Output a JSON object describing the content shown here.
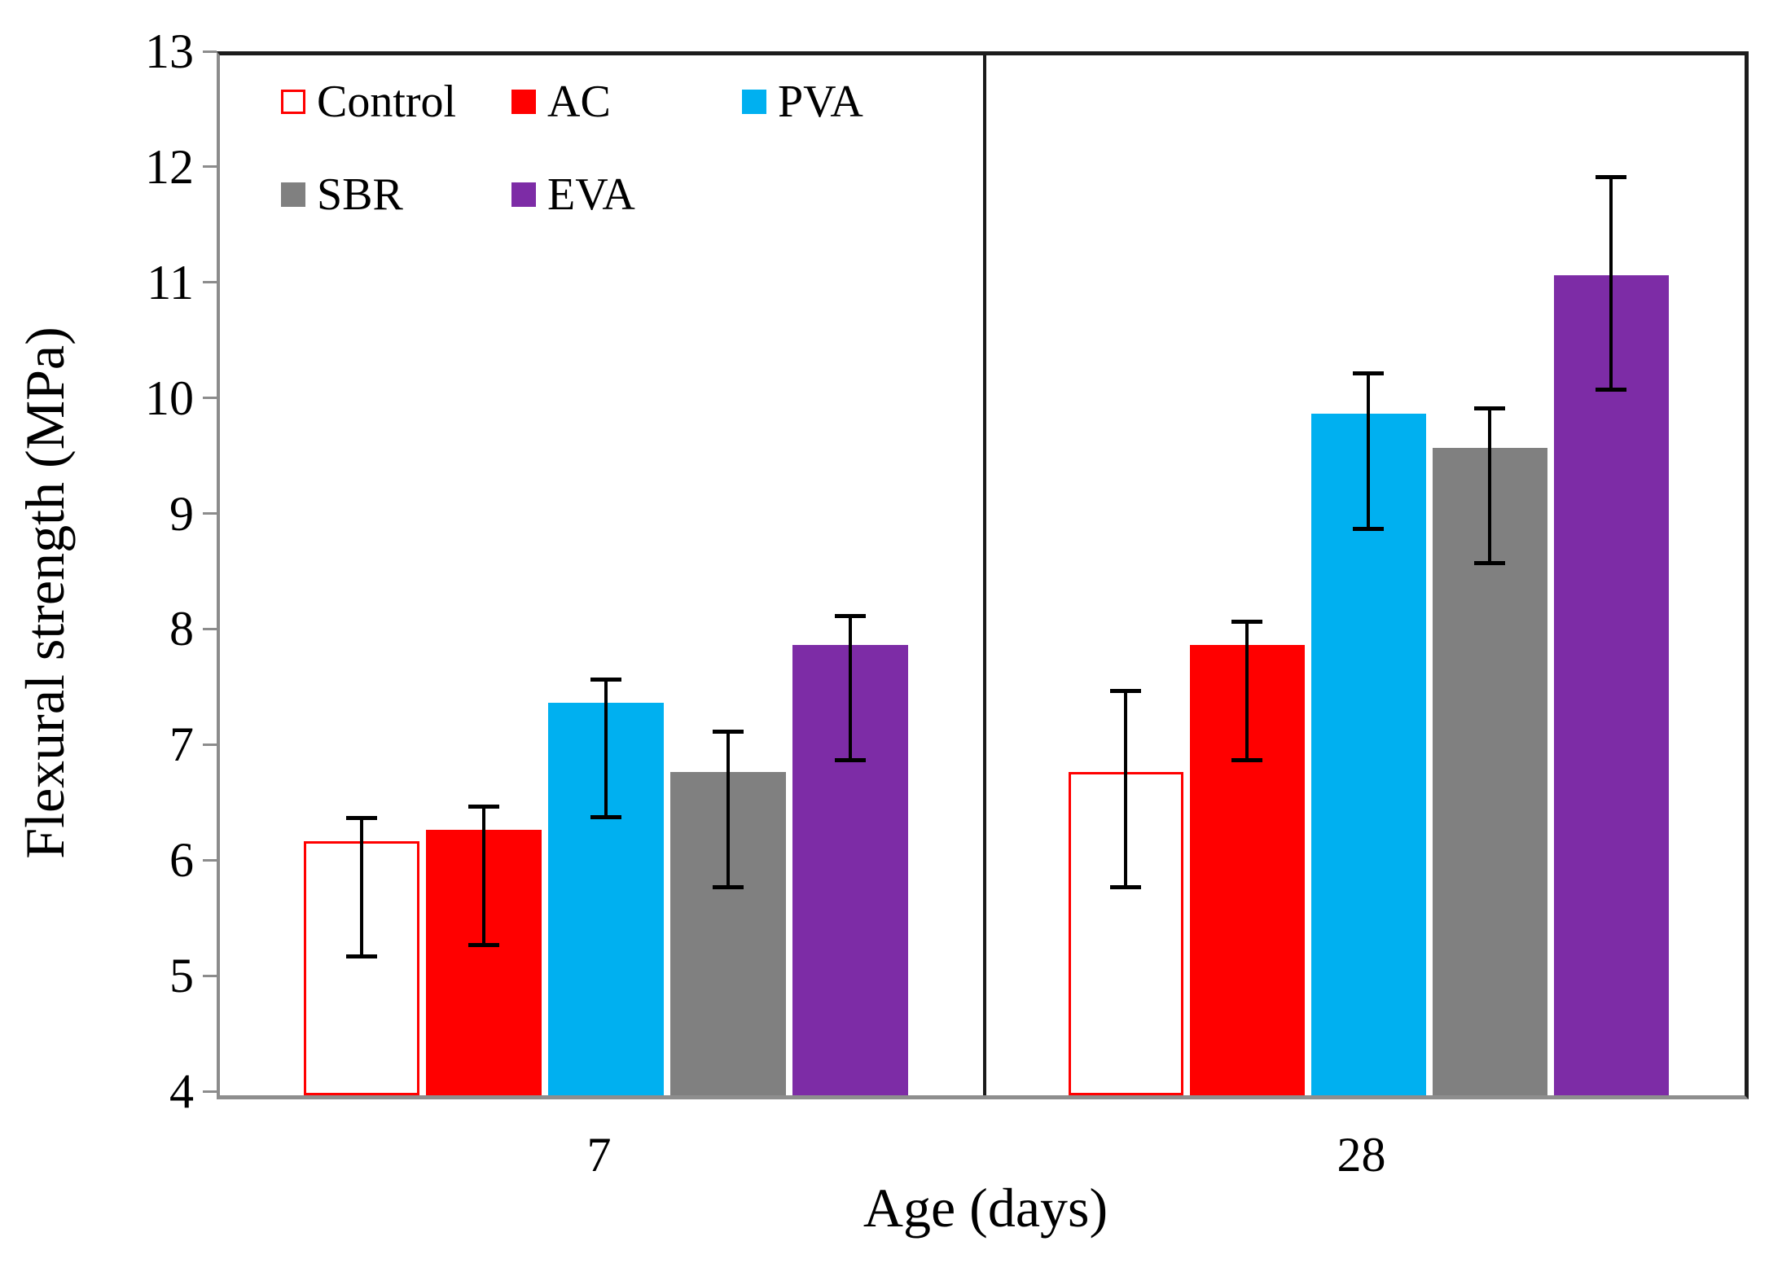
{
  "chart_data": {
    "type": "bar",
    "title": "",
    "xlabel": "Age (days)",
    "ylabel": "Flexural strength (MPa)",
    "ylim": [
      4,
      13
    ],
    "yticks": [
      4,
      5,
      6,
      7,
      8,
      9,
      10,
      11,
      12,
      13
    ],
    "categories": [
      "7",
      "28"
    ],
    "grid": false,
    "legend_position": "top-left-inside",
    "legend_rows": [
      [
        "Control",
        "AC",
        "PVA"
      ],
      [
        "SBR",
        "EVA"
      ]
    ],
    "series": [
      {
        "name": "Control",
        "color": "#FF0000",
        "fill": "hollow",
        "values": [
          6.2,
          6.8
        ],
        "err_low": [
          5.2,
          5.8
        ],
        "err_high": [
          6.4,
          7.5
        ]
      },
      {
        "name": "AC",
        "color": "#FF0000",
        "fill": "solid",
        "values": [
          6.3,
          7.9
        ],
        "err_low": [
          5.3,
          6.9
        ],
        "err_high": [
          6.5,
          8.1
        ]
      },
      {
        "name": "PVA",
        "color": "#00B0F0",
        "fill": "solid",
        "values": [
          7.4,
          9.9
        ],
        "err_low": [
          6.4,
          8.9
        ],
        "err_high": [
          7.6,
          10.25
        ]
      },
      {
        "name": "SBR",
        "color": "#808080",
        "fill": "solid",
        "values": [
          6.8,
          9.6
        ],
        "err_low": [
          5.8,
          8.6
        ],
        "err_high": [
          7.15,
          9.95
        ]
      },
      {
        "name": "EVA",
        "color": "#7D2CA6",
        "fill": "solid",
        "values": [
          7.9,
          11.1
        ],
        "err_low": [
          6.9,
          10.1
        ],
        "err_high": [
          8.15,
          11.95
        ]
      }
    ],
    "colors": {
      "error_bar": "#000000",
      "frame": "#1C1C1C",
      "axis_line": "#8C8C8C",
      "panel_divider": "#1A1A1A"
    }
  }
}
